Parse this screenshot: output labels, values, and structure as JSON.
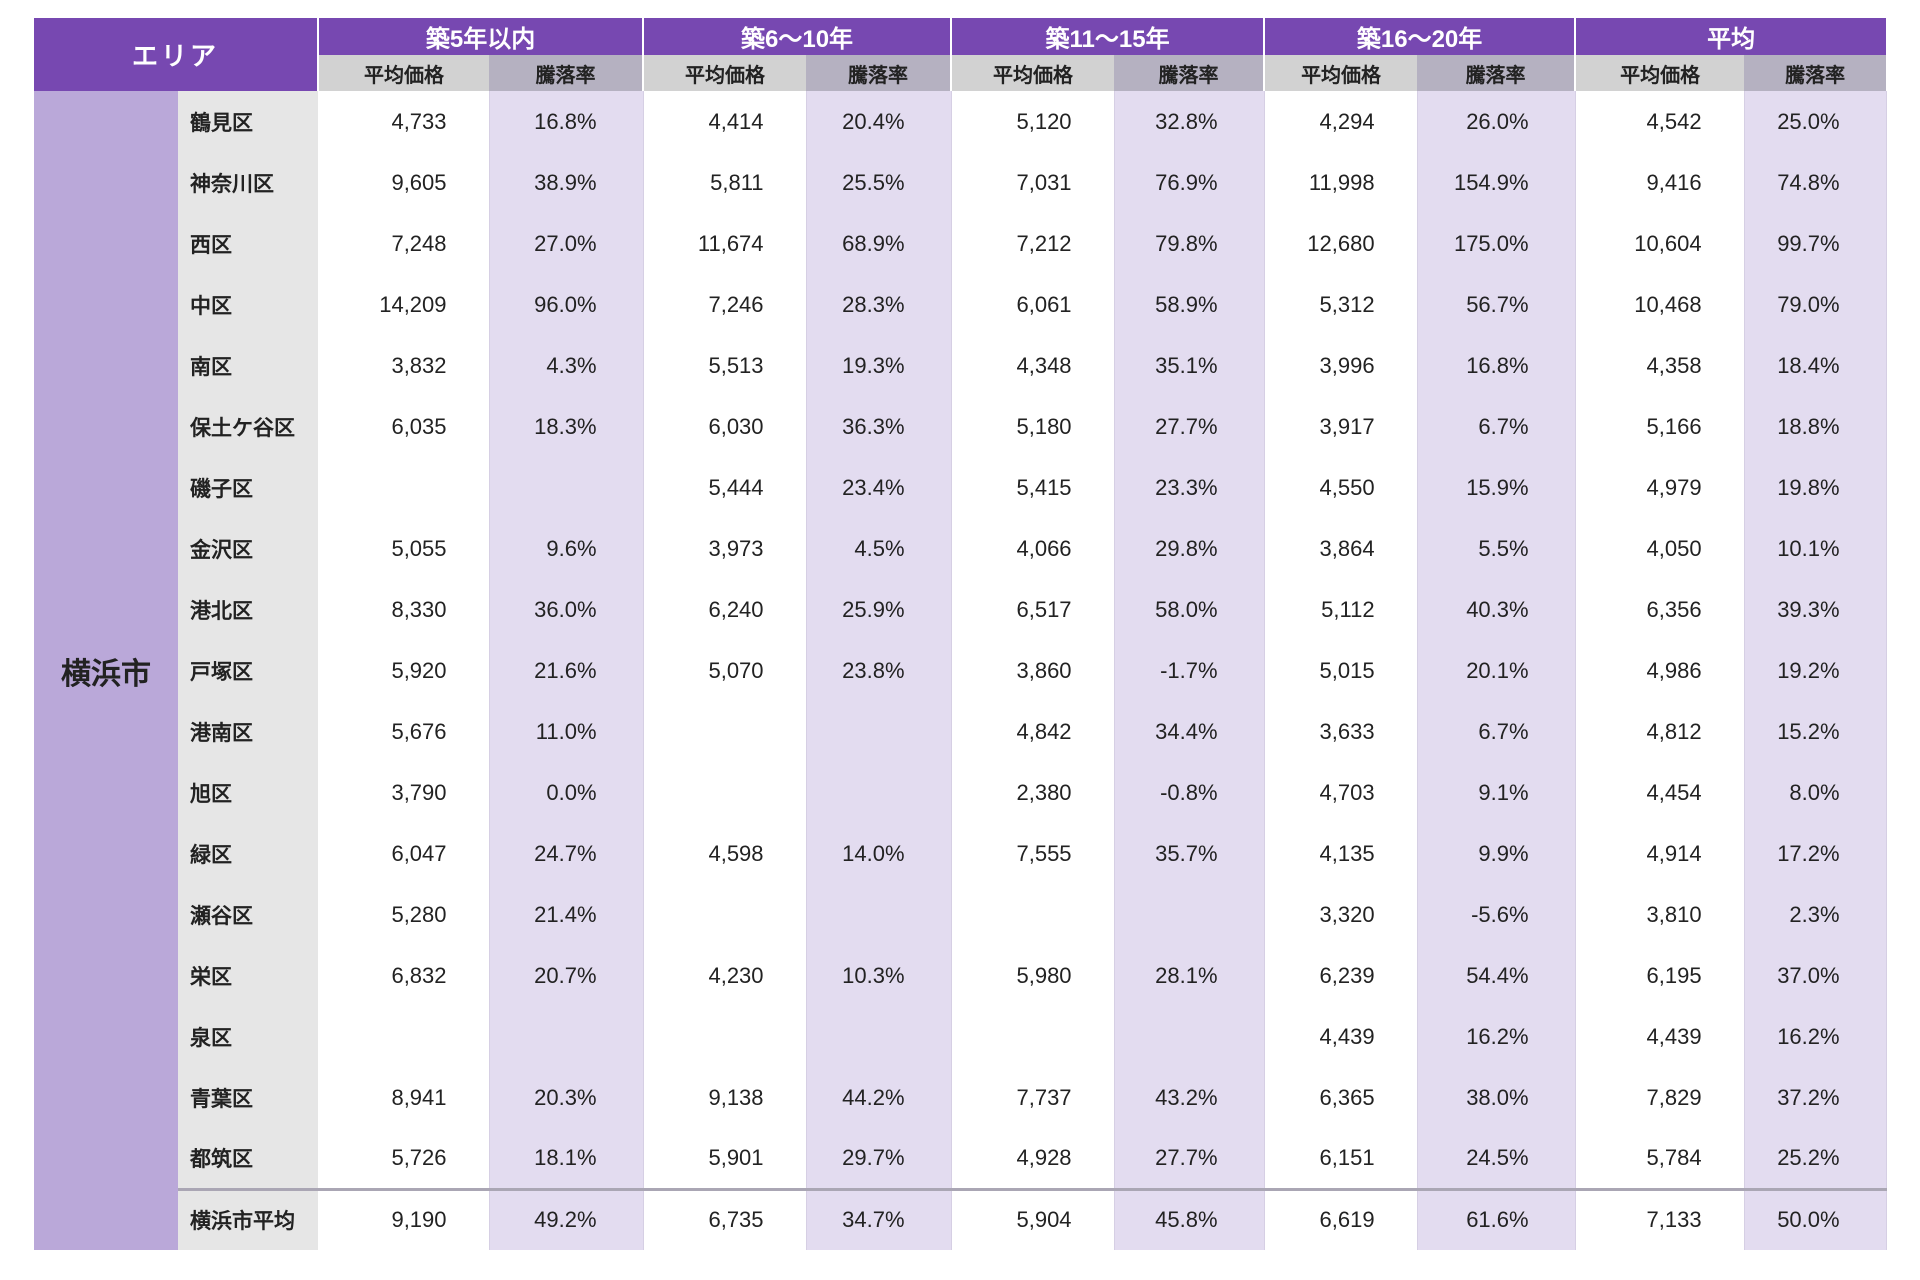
{
  "header": {
    "area": "エリア",
    "groups": [
      "築5年以内",
      "築6〜10年",
      "築11〜15年",
      "築16〜20年",
      "平均"
    ],
    "price": "平均価格",
    "rate": "騰落率"
  },
  "city": "横浜市",
  "rows": [
    {
      "ward": "鶴見区",
      "v": [
        "4,733",
        "16.8%",
        "4,414",
        "20.4%",
        "5,120",
        "32.8%",
        "4,294",
        "26.0%",
        "4,542",
        "25.0%"
      ]
    },
    {
      "ward": "神奈川区",
      "v": [
        "9,605",
        "38.9%",
        "5,811",
        "25.5%",
        "7,031",
        "76.9%",
        "11,998",
        "154.9%",
        "9,416",
        "74.8%"
      ]
    },
    {
      "ward": "西区",
      "v": [
        "7,248",
        "27.0%",
        "11,674",
        "68.9%",
        "7,212",
        "79.8%",
        "12,680",
        "175.0%",
        "10,604",
        "99.7%"
      ]
    },
    {
      "ward": "中区",
      "v": [
        "14,209",
        "96.0%",
        "7,246",
        "28.3%",
        "6,061",
        "58.9%",
        "5,312",
        "56.7%",
        "10,468",
        "79.0%"
      ]
    },
    {
      "ward": "南区",
      "v": [
        "3,832",
        "4.3%",
        "5,513",
        "19.3%",
        "4,348",
        "35.1%",
        "3,996",
        "16.8%",
        "4,358",
        "18.4%"
      ]
    },
    {
      "ward": "保土ケ谷区",
      "v": [
        "6,035",
        "18.3%",
        "6,030",
        "36.3%",
        "5,180",
        "27.7%",
        "3,917",
        "6.7%",
        "5,166",
        "18.8%"
      ]
    },
    {
      "ward": "磯子区",
      "v": [
        "",
        "",
        "5,444",
        "23.4%",
        "5,415",
        "23.3%",
        "4,550",
        "15.9%",
        "4,979",
        "19.8%"
      ]
    },
    {
      "ward": "金沢区",
      "v": [
        "5,055",
        "9.6%",
        "3,973",
        "4.5%",
        "4,066",
        "29.8%",
        "3,864",
        "5.5%",
        "4,050",
        "10.1%"
      ]
    },
    {
      "ward": "港北区",
      "v": [
        "8,330",
        "36.0%",
        "6,240",
        "25.9%",
        "6,517",
        "58.0%",
        "5,112",
        "40.3%",
        "6,356",
        "39.3%"
      ]
    },
    {
      "ward": "戸塚区",
      "v": [
        "5,920",
        "21.6%",
        "5,070",
        "23.8%",
        "3,860",
        "-1.7%",
        "5,015",
        "20.1%",
        "4,986",
        "19.2%"
      ]
    },
    {
      "ward": "港南区",
      "v": [
        "5,676",
        "11.0%",
        "",
        "",
        "4,842",
        "34.4%",
        "3,633",
        "6.7%",
        "4,812",
        "15.2%"
      ]
    },
    {
      "ward": "旭区",
      "v": [
        "3,790",
        "0.0%",
        "",
        "",
        "2,380",
        "-0.8%",
        "4,703",
        "9.1%",
        "4,454",
        "8.0%"
      ]
    },
    {
      "ward": "緑区",
      "v": [
        "6,047",
        "24.7%",
        "4,598",
        "14.0%",
        "7,555",
        "35.7%",
        "4,135",
        "9.9%",
        "4,914",
        "17.2%"
      ]
    },
    {
      "ward": "瀬谷区",
      "v": [
        "5,280",
        "21.4%",
        "",
        "",
        "",
        "",
        "3,320",
        "-5.6%",
        "3,810",
        "2.3%"
      ]
    },
    {
      "ward": "栄区",
      "v": [
        "6,832",
        "20.7%",
        "4,230",
        "10.3%",
        "5,980",
        "28.1%",
        "6,239",
        "54.4%",
        "6,195",
        "37.0%"
      ]
    },
    {
      "ward": "泉区",
      "v": [
        "",
        "",
        "",
        "",
        "",
        "",
        "4,439",
        "16.2%",
        "4,439",
        "16.2%"
      ]
    },
    {
      "ward": "青葉区",
      "v": [
        "8,941",
        "20.3%",
        "9,138",
        "44.2%",
        "7,737",
        "43.2%",
        "6,365",
        "38.0%",
        "7,829",
        "37.2%"
      ]
    },
    {
      "ward": "都筑区",
      "v": [
        "5,726",
        "18.1%",
        "5,901",
        "29.7%",
        "4,928",
        "27.7%",
        "6,151",
        "24.5%",
        "5,784",
        "25.2%"
      ]
    },
    {
      "ward": "横浜市平均",
      "v": [
        "9,190",
        "49.2%",
        "6,735",
        "34.7%",
        "5,904",
        "45.8%",
        "6,619",
        "61.6%",
        "7,133",
        "50.0%"
      ]
    }
  ]
}
